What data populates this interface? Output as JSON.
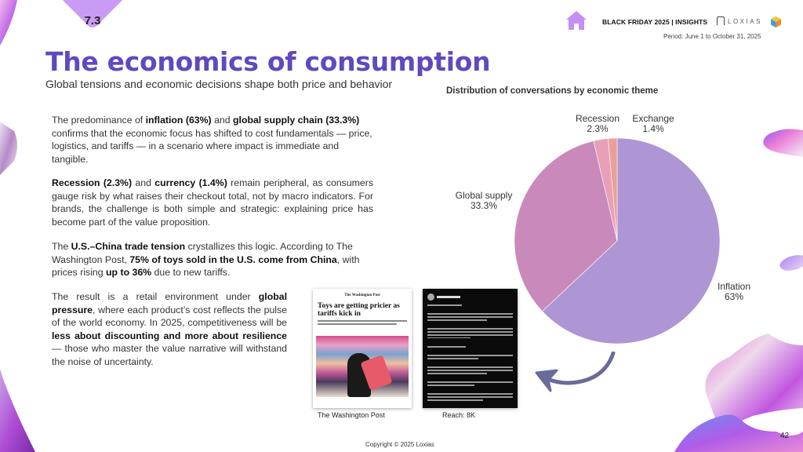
{
  "section": {
    "number": "7.3"
  },
  "header": {
    "brand_title": "BLACK FRIDAY 2025 |  INSIGHTS",
    "logo_text": "LOXIAS",
    "period": "Period: June 1 to October 31, 2025",
    "icons": {
      "home": "home-icon",
      "loxias": "loxias-logo-icon",
      "hex": "hexagon-logo-icon"
    },
    "colors": {
      "home_icon": "#c58ef5",
      "title": "#6049c0",
      "section_tab": "#c89bf5"
    }
  },
  "page": {
    "title": "The economics of consumption",
    "subtitle": "Global tensions and economic decisions shape both price and behavior",
    "number": "42"
  },
  "body": {
    "p1": {
      "t1": "The predominance of ",
      "b1": "inflation (63%)",
      "t2": " and ",
      "b2": "global supply chain (33.3%)",
      "t3": " confirms that the economic focus has shifted to cost fundamentals — price, logistics, and tariffs — in a scenario where impact is immediate and tangible."
    },
    "p2": {
      "b1": "Recession (2.3%)",
      "t1": " and ",
      "b2": "currency (1.4%)",
      "t2": " remain peripheral, as consumers gauge risk by what raises their checkout total, not by macro indicators. For brands, the challenge is both simple and strategic: explaining price has become part of the value proposition."
    },
    "p3": {
      "t1": "The ",
      "b1": "U.S.–China trade tension",
      "t2": " crystallizes this logic. According to The Washington Post, ",
      "b2": "75% of toys sold in the U.S. come from China",
      "t3": ", with prices rising ",
      "b3": "up to 36%",
      "t4": " due to new tariffs."
    },
    "p4": {
      "t1": "The result is a retail environment under ",
      "b1": "global pressure",
      "t2": ", where each product’s cost reflects the pulse of the world economy. In 2025, competitiveness will be ",
      "b2": "less about discounting and more about resilience",
      "t3": " — those who master the value narrative will withstand the noise of uncertainty."
    }
  },
  "media": [
    {
      "source": "The Washington Post",
      "masthead": "The Washington Post",
      "headline": "Toys are getting pricier as tariffs kick in"
    },
    {
      "source": "Reach: 8K"
    }
  ],
  "footer": {
    "copyright": "Copyright © 2025 Loxias"
  },
  "chart_data": {
    "type": "pie",
    "title": "Distribution of conversations by economic theme",
    "categories": [
      "Inflation",
      "Global supply",
      "Recession",
      "Exchange"
    ],
    "values": [
      63,
      33.3,
      2.3,
      1.4
    ],
    "labels": [
      "Inflation\n63%",
      "Global supply\n33.3%",
      "Recession\n2.3%",
      "Exchange\n1.4%"
    ],
    "colors": [
      "#ae96d4",
      "#c98abb",
      "#e8a0b9",
      "#eba096"
    ],
    "start_angle": "12 o'clock",
    "direction": "clockwise",
    "legend": "none (labels outside slices)"
  }
}
